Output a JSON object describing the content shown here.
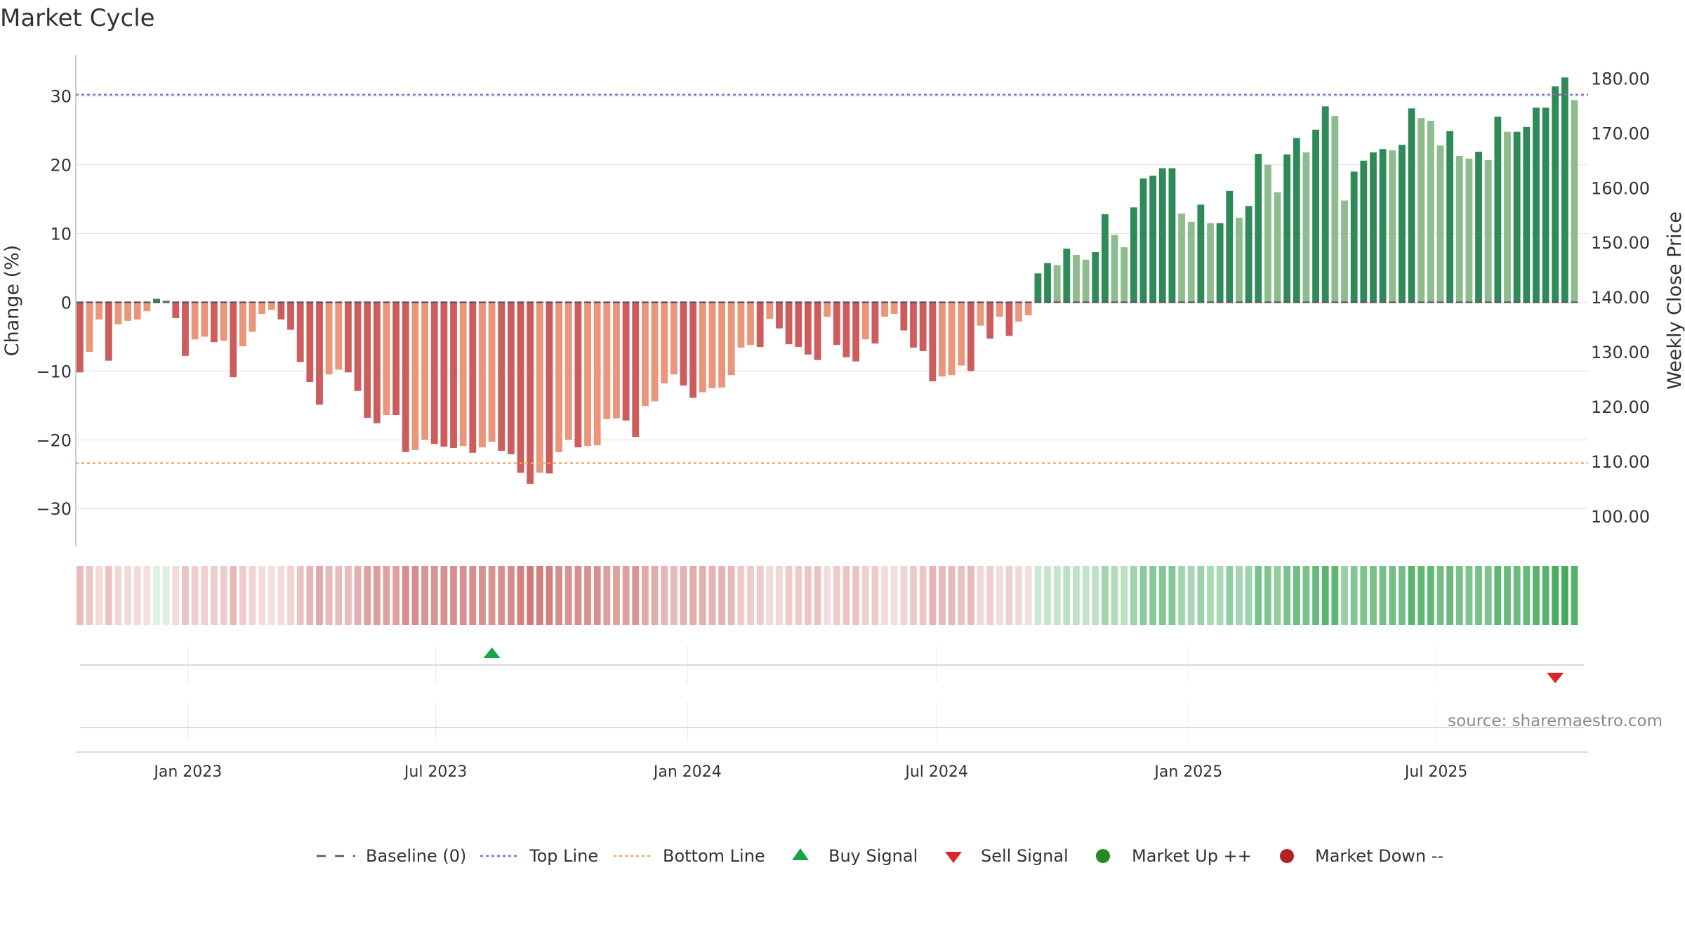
{
  "chart_data": {
    "type": "bar",
    "title": "Market Cycle",
    "ylabel": "Change (%)",
    "y2label": "Weekly Close Price",
    "ylim": [
      -35.5,
      36
    ],
    "yticks": [
      -30,
      -20,
      -10,
      0,
      10,
      20,
      30
    ],
    "y2lim": [
      94.45,
      184.3
    ],
    "y2ticks": [
      "100.00",
      "110.00",
      "120.00",
      "130.00",
      "140.00",
      "150.00",
      "160.00",
      "170.00",
      "180.00"
    ],
    "top_line": 30.2,
    "bottom_line": -23.4,
    "baseline": 0,
    "xlim": [
      "2022-10-11",
      "2025-10-20"
    ],
    "xticks": [
      {
        "label": "Jan 2023",
        "date": "2023-01-01"
      },
      {
        "label": "Jul 2023",
        "date": "2023-07-01"
      },
      {
        "label": "Jan 2024",
        "date": "2024-01-01"
      },
      {
        "label": "Jul 2024",
        "date": "2024-07-01"
      },
      {
        "label": "Jan 2025",
        "date": "2025-01-01"
      },
      {
        "label": "Jul 2025",
        "date": "2025-07-01"
      }
    ],
    "start_week": "2022-10-14",
    "values": [
      -10.2,
      -7.2,
      -2.5,
      -8.5,
      -3.2,
      -2.7,
      -2.5,
      -1.3,
      0.5,
      0.3,
      -2.3,
      -7.8,
      -5.4,
      -5.0,
      -5.8,
      -5.6,
      -10.9,
      -6.4,
      -4.3,
      -1.7,
      -1.1,
      -2.5,
      -4.0,
      -8.7,
      -11.6,
      -14.9,
      -10.5,
      -9.8,
      -10.2,
      -12.9,
      -16.8,
      -17.6,
      -16.4,
      -16.4,
      -21.8,
      -21.5,
      -20.0,
      -20.6,
      -21.0,
      -21.2,
      -20.9,
      -21.9,
      -21.1,
      -20.3,
      -21.6,
      -22.1,
      -24.8,
      -26.4,
      -24.8,
      -24.9,
      -21.8,
      -20.0,
      -21.1,
      -20.9,
      -20.8,
      -17.0,
      -16.9,
      -17.2,
      -19.6,
      -15.1,
      -14.4,
      -11.8,
      -10.5,
      -12.1,
      -13.9,
      -13.1,
      -12.5,
      -12.4,
      -10.6,
      -6.6,
      -6.2,
      -6.5,
      -2.4,
      -3.8,
      -6.1,
      -6.5,
      -7.6,
      -8.4,
      -2.1,
      -6.2,
      -8.0,
      -8.6,
      -5.4,
      -6.0,
      -2.1,
      -1.7,
      -4.1,
      -6.6,
      -7.1,
      -11.5,
      -10.8,
      -10.6,
      -9.2,
      -10.0,
      -3.4,
      -5.3,
      -2.1,
      -4.9,
      -2.8,
      -1.9,
      4.2,
      5.7,
      5.4,
      7.8,
      6.9,
      6.2,
      7.3,
      12.8,
      9.8,
      8.0,
      13.8,
      18.0,
      18.4,
      19.5,
      19.5,
      12.9,
      11.7,
      14.2,
      11.5,
      11.5,
      16.2,
      12.3,
      14.0,
      21.6,
      20.0,
      16.0,
      21.5,
      23.9,
      21.8,
      25.1,
      28.5,
      27.1,
      14.8,
      19.0,
      20.6,
      21.8,
      22.3,
      22.1,
      22.9,
      28.2,
      26.8,
      26.4,
      22.8,
      24.9,
      21.3,
      20.9,
      21.9,
      20.7,
      27.0,
      24.8,
      24.8,
      25.5,
      28.3,
      28.3,
      31.4,
      32.7,
      29.4
    ],
    "prices": [
      129.8,
      132.8,
      137.5,
      131.5,
      136.8,
      137.3,
      137.5,
      138.7,
      140.5,
      140.3,
      137.7,
      132.2,
      134.6,
      135.0,
      134.2,
      134.4,
      129.1,
      133.6,
      135.7,
      138.3,
      138.9,
      137.5,
      136.0,
      131.3,
      128.4,
      125.1,
      129.5,
      130.2,
      129.8,
      127.1,
      123.2,
      122.4,
      123.6,
      123.6,
      118.2,
      118.5,
      120.0,
      119.4,
      119.0,
      118.8,
      119.1,
      118.1,
      118.9,
      119.7,
      118.4,
      117.9,
      115.2,
      113.6,
      115.2,
      115.1,
      118.2,
      120.0,
      118.9,
      119.1,
      119.2,
      123.0,
      123.1,
      122.8,
      120.4,
      124.9,
      125.6,
      128.2,
      129.5,
      127.9,
      126.1,
      126.9,
      127.5,
      127.6,
      129.4,
      133.4,
      133.8,
      133.5,
      137.6,
      136.2,
      133.9,
      133.5,
      132.4,
      131.6,
      137.9,
      133.8,
      132.0,
      131.4,
      134.6,
      134.0,
      137.9,
      138.3,
      135.9,
      133.4,
      132.9,
      128.5,
      129.2,
      129.4,
      130.8,
      130.0,
      136.6,
      134.7,
      137.9,
      135.1,
      137.2,
      138.1,
      144.2,
      145.7,
      145.4,
      147.8,
      146.9,
      146.2,
      147.3,
      152.8,
      149.8,
      148.0,
      153.8,
      158.0,
      158.4,
      159.5,
      159.5,
      152.9,
      151.7,
      154.2,
      151.5,
      151.5,
      156.2,
      152.3,
      154.0,
      161.6,
      160.0,
      156.0,
      161.5,
      163.9,
      161.8,
      165.1,
      168.5,
      167.1,
      154.8,
      159.0,
      160.6,
      161.8,
      162.3,
      162.1,
      162.9,
      168.2,
      166.8,
      166.4,
      162.8,
      164.9,
      161.3,
      160.9,
      161.9,
      160.7,
      167.0,
      164.8,
      164.8,
      165.5,
      168.3,
      168.3,
      171.4,
      172.7,
      169.4
    ],
    "buy_signals": [
      {
        "date": "2023-08-11"
      }
    ],
    "sell_signals": [
      {
        "date": "2025-09-26"
      }
    ],
    "legend_position": "bottom-center",
    "grid": true
  },
  "source_text": "source: sharemaestro.com",
  "legend": {
    "baseline": "Baseline (0)",
    "top_line": "Top Line",
    "bottom_line": "Bottom Line",
    "buy": "Buy Signal",
    "sell": "Sell Signal",
    "market_up": "Market Up ++",
    "market_down": "Market Down --"
  },
  "colors": {
    "neg_dark": "#cd5c5c",
    "neg_light": "#e9967a",
    "pos_dark": "#2e8b57",
    "pos_light": "#8fbc8f",
    "top_line": "#9467bd",
    "bottom_line": "#f4a460",
    "buy": "#16a34a",
    "sell": "#dc2626",
    "market_up": "#228b22",
    "market_down": "#b22222",
    "baseline": "#555555"
  }
}
